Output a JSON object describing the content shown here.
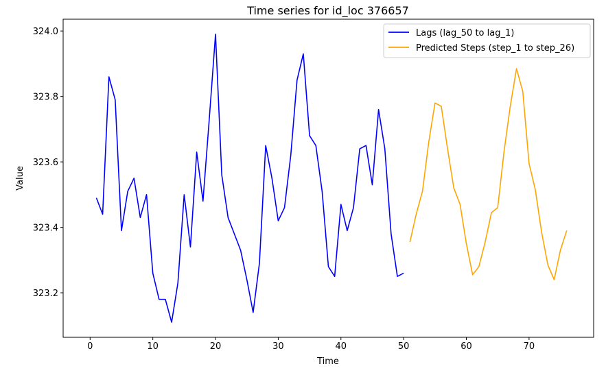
{
  "chart_data": {
    "type": "line",
    "title": "Time series for id_loc 376657",
    "xlabel": "Time",
    "ylabel": "Value",
    "xlim": [
      -4.3,
      80.3
    ],
    "ylim": [
      323.064,
      324.036
    ],
    "x_ticks": [
      0,
      10,
      20,
      30,
      40,
      50,
      60,
      70
    ],
    "x_tick_labels": [
      "0",
      "10",
      "20",
      "30",
      "40",
      "50",
      "60",
      "70"
    ],
    "y_ticks": [
      323.2,
      323.4,
      323.6,
      323.8,
      324.0
    ],
    "y_tick_labels": [
      "323.2",
      "323.4",
      "323.6",
      "323.8",
      "324.0"
    ],
    "grid": false,
    "legend_position": "top-right",
    "series": [
      {
        "name": "Lags (lag_50 to lag_1)",
        "color": "#0000ff",
        "x": [
          1,
          2,
          3,
          4,
          5,
          6,
          7,
          8,
          9,
          10,
          11,
          12,
          13,
          14,
          15,
          16,
          17,
          18,
          19,
          20,
          21,
          22,
          23,
          24,
          25,
          26,
          27,
          28,
          29,
          30,
          31,
          32,
          33,
          34,
          35,
          36,
          37,
          38,
          39,
          40,
          41,
          42,
          43,
          44,
          45,
          46,
          47,
          48,
          49,
          50
        ],
        "values": [
          323.49,
          323.44,
          323.86,
          323.79,
          323.39,
          323.51,
          323.55,
          323.43,
          323.5,
          323.26,
          323.18,
          323.18,
          323.11,
          323.23,
          323.5,
          323.34,
          323.63,
          323.48,
          323.73,
          323.99,
          323.56,
          323.43,
          323.38,
          323.33,
          323.24,
          323.14,
          323.29,
          323.65,
          323.55,
          323.42,
          323.46,
          323.62,
          323.85,
          323.93,
          323.68,
          323.65,
          323.51,
          323.28,
          323.25,
          323.47,
          323.39,
          323.46,
          323.64,
          323.65,
          323.53,
          323.76,
          323.64,
          323.38,
          323.25,
          323.26
        ]
      },
      {
        "name": "Predicted Steps (step_1 to step_26)",
        "color": "#ffa500",
        "x": [
          51,
          52,
          53,
          54,
          55,
          56,
          57,
          58,
          59,
          60,
          61,
          62,
          63,
          64,
          65,
          66,
          67,
          68,
          69,
          70,
          71,
          72,
          73,
          74,
          75,
          76
        ],
        "values": [
          323.355,
          323.44,
          323.51,
          323.66,
          323.78,
          323.77,
          323.64,
          323.52,
          323.47,
          323.35,
          323.255,
          323.28,
          323.355,
          323.445,
          323.46,
          323.63,
          323.77,
          323.885,
          323.815,
          323.595,
          323.515,
          323.385,
          323.285,
          323.24,
          323.33,
          323.39
        ]
      }
    ]
  }
}
